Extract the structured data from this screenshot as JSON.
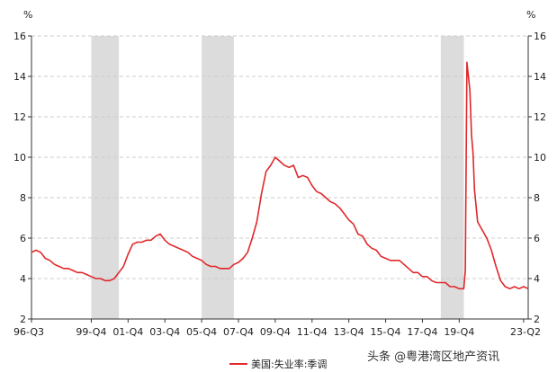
{
  "chart_data": {
    "type": "line",
    "y_unit_left": "%",
    "y_unit_right": "%",
    "ylim": [
      2,
      16
    ],
    "y_ticks": [
      2,
      4,
      6,
      8,
      10,
      12,
      14,
      16
    ],
    "x_tick_labels": [
      "96-Q3",
      "99-Q4",
      "01-Q4",
      "03-Q4",
      "05-Q4",
      "07-Q4",
      "09-Q4",
      "11-Q4",
      "13-Q4",
      "15-Q4",
      "17-Q4",
      "19-Q4",
      "23-Q2"
    ],
    "x_tick_years": [
      1996.5,
      1999.75,
      2001.75,
      2003.75,
      2005.75,
      2007.75,
      2009.75,
      2011.75,
      2013.75,
      2015.75,
      2017.75,
      2019.75,
      2023.25
    ],
    "x_range": [
      1996.5,
      2023.5
    ],
    "grid": true,
    "recession_shading": [
      [
        1999.75,
        2001.25
      ],
      [
        2005.75,
        2007.5
      ],
      [
        2018.75,
        2020.0
      ]
    ],
    "series": [
      {
        "name": "美国:失业率:季调",
        "color": "#e0272a",
        "points": [
          [
            1996.5,
            5.3
          ],
          [
            1996.75,
            5.4
          ],
          [
            1997.0,
            5.3
          ],
          [
            1997.25,
            5.0
          ],
          [
            1997.5,
            4.9
          ],
          [
            1997.75,
            4.7
          ],
          [
            1998.0,
            4.6
          ],
          [
            1998.25,
            4.5
          ],
          [
            1998.5,
            4.5
          ],
          [
            1998.75,
            4.4
          ],
          [
            1999.0,
            4.3
          ],
          [
            1999.25,
            4.3
          ],
          [
            1999.5,
            4.2
          ],
          [
            1999.75,
            4.1
          ],
          [
            2000.0,
            4.0
          ],
          [
            2000.25,
            4.0
          ],
          [
            2000.5,
            3.9
          ],
          [
            2000.75,
            3.9
          ],
          [
            2001.0,
            4.0
          ],
          [
            2001.25,
            4.3
          ],
          [
            2001.5,
            4.6
          ],
          [
            2001.75,
            5.2
          ],
          [
            2002.0,
            5.7
          ],
          [
            2002.25,
            5.8
          ],
          [
            2002.5,
            5.8
          ],
          [
            2002.75,
            5.9
          ],
          [
            2003.0,
            5.9
          ],
          [
            2003.25,
            6.1
          ],
          [
            2003.5,
            6.2
          ],
          [
            2003.75,
            5.9
          ],
          [
            2004.0,
            5.7
          ],
          [
            2004.25,
            5.6
          ],
          [
            2004.5,
            5.5
          ],
          [
            2004.75,
            5.4
          ],
          [
            2005.0,
            5.3
          ],
          [
            2005.25,
            5.1
          ],
          [
            2005.5,
            5.0
          ],
          [
            2005.75,
            4.9
          ],
          [
            2006.0,
            4.7
          ],
          [
            2006.25,
            4.6
          ],
          [
            2006.5,
            4.6
          ],
          [
            2006.75,
            4.5
          ],
          [
            2007.0,
            4.5
          ],
          [
            2007.25,
            4.5
          ],
          [
            2007.5,
            4.7
          ],
          [
            2007.75,
            4.8
          ],
          [
            2008.0,
            5.0
          ],
          [
            2008.25,
            5.3
          ],
          [
            2008.5,
            6.0
          ],
          [
            2008.75,
            6.8
          ],
          [
            2009.0,
            8.2
          ],
          [
            2009.25,
            9.3
          ],
          [
            2009.5,
            9.6
          ],
          [
            2009.75,
            10.0
          ],
          [
            2010.0,
            9.8
          ],
          [
            2010.25,
            9.6
          ],
          [
            2010.5,
            9.5
          ],
          [
            2010.75,
            9.6
          ],
          [
            2011.0,
            9.0
          ],
          [
            2011.25,
            9.1
          ],
          [
            2011.5,
            9.0
          ],
          [
            2011.75,
            8.6
          ],
          [
            2012.0,
            8.3
          ],
          [
            2012.25,
            8.2
          ],
          [
            2012.5,
            8.0
          ],
          [
            2012.75,
            7.8
          ],
          [
            2013.0,
            7.7
          ],
          [
            2013.25,
            7.5
          ],
          [
            2013.5,
            7.2
          ],
          [
            2013.75,
            6.9
          ],
          [
            2014.0,
            6.7
          ],
          [
            2014.25,
            6.2
          ],
          [
            2014.5,
            6.1
          ],
          [
            2014.75,
            5.7
          ],
          [
            2015.0,
            5.5
          ],
          [
            2015.25,
            5.4
          ],
          [
            2015.5,
            5.1
          ],
          [
            2015.75,
            5.0
          ],
          [
            2016.0,
            4.9
          ],
          [
            2016.25,
            4.9
          ],
          [
            2016.5,
            4.9
          ],
          [
            2016.75,
            4.7
          ],
          [
            2017.0,
            4.5
          ],
          [
            2017.25,
            4.3
          ],
          [
            2017.5,
            4.3
          ],
          [
            2017.75,
            4.1
          ],
          [
            2018.0,
            4.1
          ],
          [
            2018.25,
            3.9
          ],
          [
            2018.5,
            3.8
          ],
          [
            2018.75,
            3.8
          ],
          [
            2019.0,
            3.8
          ],
          [
            2019.25,
            3.6
          ],
          [
            2019.5,
            3.6
          ],
          [
            2019.75,
            3.5
          ],
          [
            2020.0,
            3.5
          ],
          [
            2020.08,
            4.4
          ],
          [
            2020.17,
            14.7
          ],
          [
            2020.33,
            13.3
          ],
          [
            2020.42,
            11.1
          ],
          [
            2020.5,
            10.2
          ],
          [
            2020.58,
            8.4
          ],
          [
            2020.75,
            6.8
          ],
          [
            2021.0,
            6.4
          ],
          [
            2021.25,
            6.0
          ],
          [
            2021.5,
            5.4
          ],
          [
            2021.75,
            4.6
          ],
          [
            2022.0,
            3.9
          ],
          [
            2022.25,
            3.6
          ],
          [
            2022.5,
            3.5
          ],
          [
            2022.75,
            3.6
          ],
          [
            2023.0,
            3.5
          ],
          [
            2023.25,
            3.6
          ],
          [
            2023.5,
            3.5
          ]
        ]
      }
    ],
    "legend_position": "bottom-left"
  },
  "watermark": "头条 @粤港湾区地产资讯"
}
